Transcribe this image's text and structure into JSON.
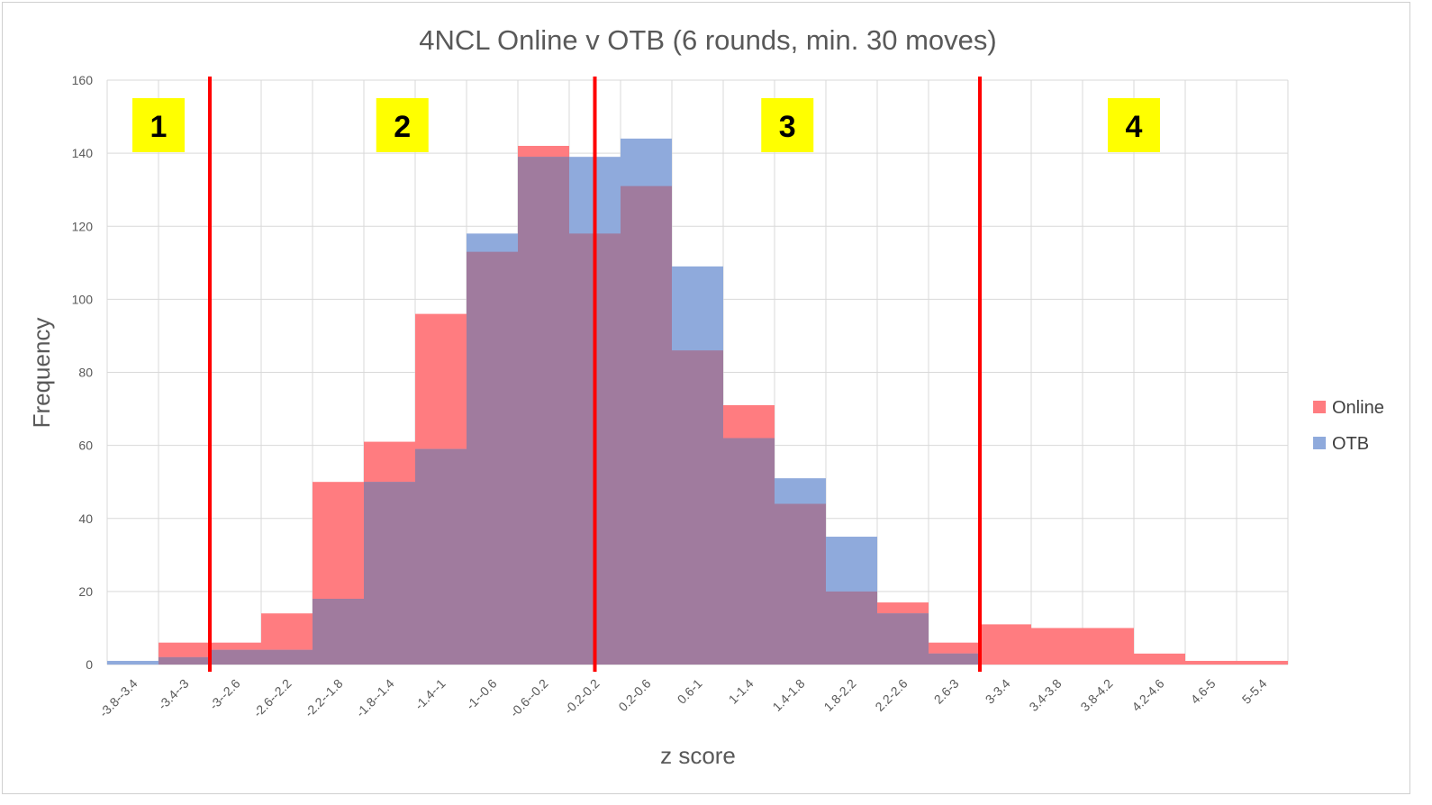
{
  "chart_data": {
    "type": "bar",
    "title": "4NCL Online v OTB (6 rounds, min. 30 moves)",
    "xlabel": "z score",
    "ylabel": "Frequency",
    "ylim": [
      0,
      160
    ],
    "yticks": [
      0,
      20,
      40,
      60,
      80,
      100,
      120,
      140,
      160
    ],
    "grid": true,
    "legend_position": "right",
    "categories": [
      "-3.8--3.4",
      "-3.4--3",
      "-3--2.6",
      "-2.6--2.2",
      "-2.2--1.8",
      "-1.8--1.4",
      "-1.4--1",
      "-1--0.6",
      "-0.6--0.2",
      "-0.2-0.2",
      "0.2-0.6",
      "0.6-1",
      "1-1.4",
      "1.4-1.8",
      "1.8-2.2",
      "2.2-2.6",
      "2.6-3",
      "3-3.4",
      "3.4-3.8",
      "3.8-4.2",
      "4.2-4.6",
      "4.6-5",
      "5-5.4"
    ],
    "series": [
      {
        "name": "Online",
        "color": "#ff7c80",
        "values": [
          0,
          6,
          6,
          14,
          50,
          61,
          96,
          113,
          142,
          118,
          131,
          86,
          71,
          44,
          20,
          17,
          6,
          11,
          10,
          10,
          3,
          1,
          1
        ]
      },
      {
        "name": "OTB",
        "color": "#8faadc",
        "values": [
          1,
          2,
          4,
          4,
          18,
          50,
          59,
          118,
          139,
          139,
          144,
          109,
          62,
          51,
          35,
          14,
          3,
          0,
          0,
          0,
          0,
          0,
          0
        ]
      }
    ],
    "overlap_color": "#a07b9e",
    "divider_color": "#ff0000",
    "region_label_color": "#ffff00",
    "annotations": [
      {
        "text": "1",
        "category_position": 1.0
      },
      {
        "text": "2",
        "category_position": 5.75
      },
      {
        "text": "3",
        "category_position": 13.25
      },
      {
        "text": "4",
        "category_position": 20.0
      }
    ],
    "dividers": [
      {
        "category_boundary": 2
      },
      {
        "category_boundary": 9.5
      },
      {
        "category_boundary": 17
      }
    ]
  }
}
